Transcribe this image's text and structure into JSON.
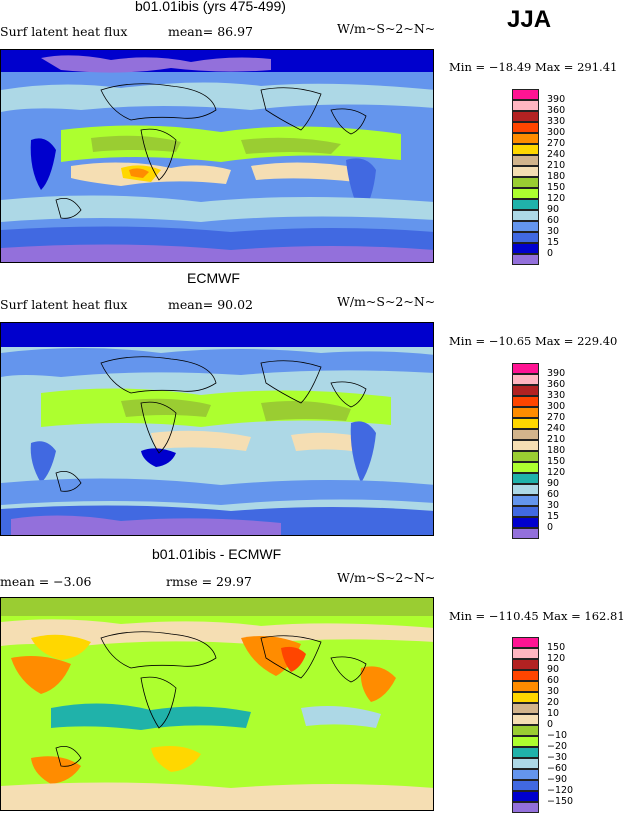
{
  "season": "JJA",
  "panels": [
    {
      "title": "b01.01ibis (yrs 475-499)",
      "field": "Surf latent heat flux",
      "stat1": "mean=  86.97",
      "stat2": "",
      "units": "W/m~S~2~N~",
      "minmax": "Min = −18.49 Max = 291.41",
      "legend": [
        "390",
        "360",
        "330",
        "300",
        "270",
        "240",
        "210",
        "180",
        "150",
        "120",
        "90",
        "60",
        "30",
        "15",
        "0"
      ],
      "colors": [
        "#ff1493",
        "#ffb6c1",
        "#b22222",
        "#ff4500",
        "#ff8c00",
        "#ffd700",
        "#d2b48c",
        "#f5deb3",
        "#9acd32",
        "#adff2f",
        "#20b2aa",
        "#add8e6",
        "#6495ed",
        "#4169e1",
        "#0000cd",
        "#9370db"
      ]
    },
    {
      "title": "ECMWF",
      "field": "Surf latent heat flux",
      "stat1": "mean=  90.02",
      "stat2": "",
      "units": "W/m~S~2~N~",
      "minmax": "Min = −10.65 Max = 229.40",
      "legend": [
        "390",
        "360",
        "330",
        "300",
        "270",
        "240",
        "210",
        "180",
        "150",
        "120",
        "90",
        "60",
        "30",
        "15",
        "0"
      ],
      "colors": [
        "#ff1493",
        "#ffb6c1",
        "#b22222",
        "#ff4500",
        "#ff8c00",
        "#ffd700",
        "#d2b48c",
        "#f5deb3",
        "#9acd32",
        "#adff2f",
        "#20b2aa",
        "#add8e6",
        "#6495ed",
        "#4169e1",
        "#0000cd",
        "#9370db"
      ]
    },
    {
      "title": "b01.01ibis - ECMWF",
      "field": "",
      "stat1": "mean =  −3.06",
      "stat2": "rmse =  29.97",
      "units": "W/m~S~2~N~",
      "minmax": "Min = −110.45 Max = 162.81",
      "legend": [
        "150",
        "120",
        "90",
        "60",
        "30",
        "20",
        "10",
        "0",
        "−10",
        "−20",
        "−30",
        "−60",
        "−90",
        "−120",
        "−150"
      ],
      "colors": [
        "#ff1493",
        "#ffb6c1",
        "#b22222",
        "#ff4500",
        "#ff8c00",
        "#ffd700",
        "#d2b48c",
        "#f5deb3",
        "#9acd32",
        "#adff2f",
        "#20b2aa",
        "#add8e6",
        "#6495ed",
        "#4169e1",
        "#0000cd",
        "#9370db"
      ]
    }
  ]
}
